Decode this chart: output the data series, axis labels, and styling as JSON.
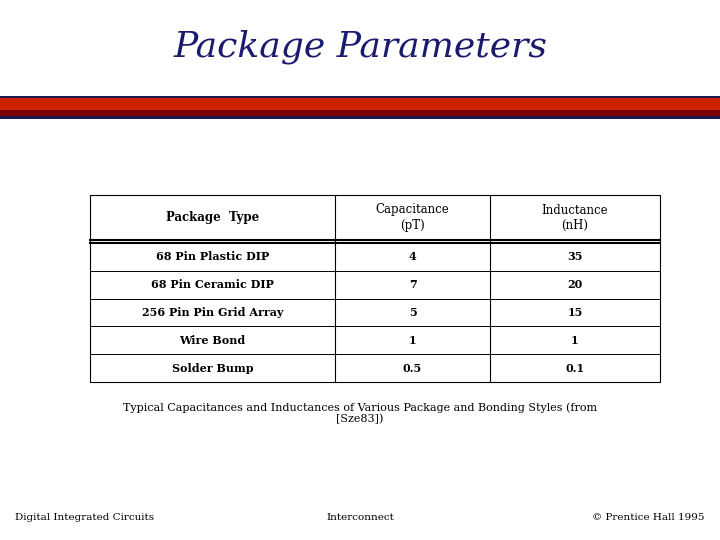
{
  "title": "Package Parameters",
  "title_color": "#1a1a6e",
  "title_fontsize": 26,
  "header_row": [
    "Package  Type",
    "Capacitance\n(pT)",
    "Inductance\n(nH)"
  ],
  "table_data": [
    [
      "68 Pin Plastic DIP",
      "4",
      "35"
    ],
    [
      "68 Pin Ceramic DIP",
      "7",
      "20"
    ],
    [
      "256 Pin Pin Grid Array",
      "5",
      "15"
    ],
    [
      "Wire Bond",
      "1",
      "1"
    ],
    [
      "Solder Bump",
      "0.5",
      "0.1"
    ]
  ],
  "caption": "Typical Capacitances and Inductances of Various Package and Bonding Styles (from\n[Sze83])",
  "footer_left": "Digital Integrated Circuits",
  "footer_center": "Interconnect",
  "footer_right": "© Prentice Hall 1995",
  "background_color": "#ffffff",
  "bar_dark": "#1a1a4e",
  "bar_red": "#cc0000",
  "bar_darkred": "#8b0000"
}
